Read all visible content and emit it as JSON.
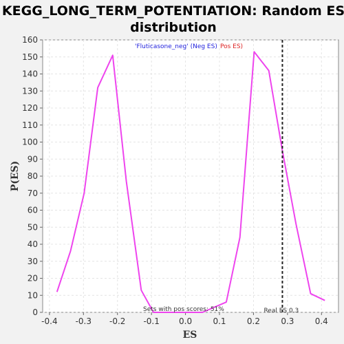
{
  "chart_data": {
    "type": "line",
    "title_line1": "KEGG_LONG_TERM_POTENTIATION: Random ES",
    "title_line2": "distribution",
    "xlabel": "ES",
    "ylabel": "P(ES)",
    "xlim": [
      -0.42,
      0.45
    ],
    "ylim": [
      0,
      160
    ],
    "xticks": [
      "-0.4",
      "-0.3",
      "-0.2",
      "-0.1",
      "0.0",
      "0.1",
      "0.2",
      "0.3",
      "0.4"
    ],
    "xtick_values": [
      -0.4,
      -0.3,
      -0.2,
      -0.1,
      0.0,
      0.1,
      0.2,
      0.3,
      0.4
    ],
    "yticks": [
      "0",
      "10",
      "20",
      "30",
      "40",
      "50",
      "60",
      "70",
      "80",
      "90",
      "100",
      "110",
      "120",
      "130",
      "140",
      "150",
      "160"
    ],
    "ytick_values": [
      0,
      10,
      20,
      30,
      40,
      50,
      60,
      70,
      80,
      90,
      100,
      110,
      120,
      130,
      140,
      150,
      160
    ],
    "grid": true,
    "series": [
      {
        "name": "'Fluticasone_neg' (Neg ES)",
        "color": "#ee44ee",
        "x": [
          -0.378,
          -0.338,
          -0.298,
          -0.258,
          -0.214,
          -0.174,
          -0.13,
          -0.094,
          -0.05,
          0.0,
          0.05,
          0.12,
          0.16,
          0.202,
          0.245,
          0.285,
          0.325,
          0.368,
          0.41
        ],
        "y": [
          12,
          36,
          70,
          132,
          151,
          77,
          13,
          0,
          0,
          0,
          0,
          6,
          44,
          153,
          142,
          95,
          52,
          11,
          7
        ]
      }
    ],
    "legend_neg": "'Fluticasone_neg' (Neg ES)",
    "legend_pos": "Pos ES)",
    "legend_neg_color": "#2222dd",
    "legend_pos_color": "#dd2222",
    "real_es": 0.285,
    "real_es_label": "Real ES 0.3",
    "pos_scores_label": "Sets with pos scores: 51%"
  }
}
